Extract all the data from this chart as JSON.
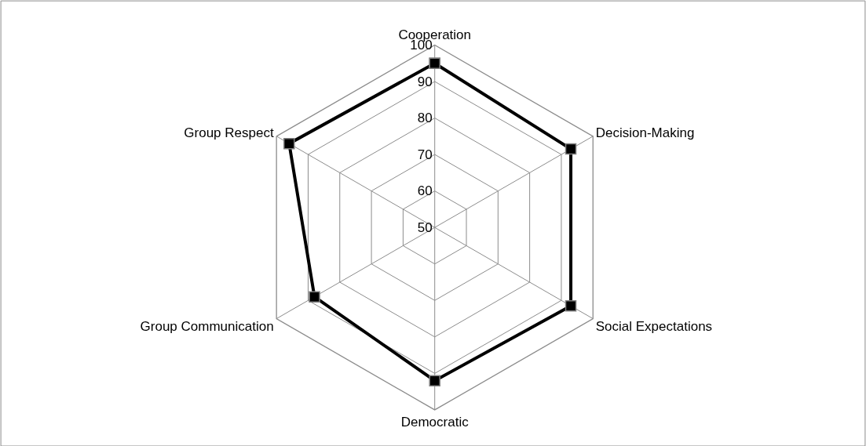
{
  "chart_data": {
    "type": "radar",
    "categories": [
      "Cooperation",
      "Decision-Making",
      "Social Expectations",
      "Democratic",
      "Group Communication",
      "Group Respect"
    ],
    "series": [
      {
        "color": "#000000",
        "values": [
          95,
          93,
          93,
          92,
          88,
          96
        ]
      }
    ],
    "ylim": [
      50,
      100
    ],
    "yticks": [
      50,
      60,
      70,
      80,
      90,
      100
    ],
    "grid": true,
    "marker": "square",
    "line_style": "solid",
    "legend": false
  }
}
